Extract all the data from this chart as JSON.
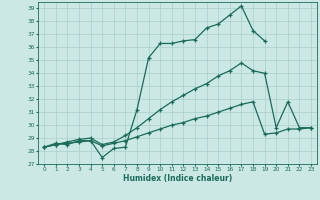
{
  "xlabel": "Humidex (Indice chaleur)",
  "bg_color": "#cce8e5",
  "grid_color": "#aacfcc",
  "line_color": "#1a6b5a",
  "xlim": [
    -0.5,
    23.5
  ],
  "ylim": [
    27,
    39.5
  ],
  "x_ticks": [
    0,
    1,
    2,
    3,
    4,
    5,
    6,
    7,
    8,
    9,
    10,
    11,
    12,
    13,
    14,
    15,
    16,
    17,
    18,
    19,
    20,
    21,
    22,
    23
  ],
  "yticks": [
    27,
    28,
    29,
    30,
    31,
    32,
    33,
    34,
    35,
    36,
    37,
    38,
    39
  ],
  "series1_x": [
    0,
    1,
    2,
    3,
    4,
    5,
    6,
    7,
    8,
    9,
    10,
    11,
    12,
    13,
    14,
    15,
    16,
    17,
    18,
    19
  ],
  "series1_y": [
    28.3,
    28.6,
    28.5,
    28.8,
    28.8,
    27.5,
    28.2,
    28.3,
    31.2,
    35.2,
    36.3,
    36.3,
    36.5,
    36.6,
    37.5,
    37.8,
    38.5,
    39.2,
    37.3,
    36.5
  ],
  "series2_x": [
    0,
    1,
    2,
    3,
    4,
    5,
    6,
    7,
    8,
    9,
    10,
    11,
    12,
    13,
    14,
    15,
    16,
    17,
    18,
    19,
    20,
    21,
    22,
    23
  ],
  "series2_y": [
    28.3,
    28.5,
    28.7,
    28.9,
    29.0,
    28.5,
    28.7,
    29.2,
    29.8,
    30.5,
    31.2,
    31.8,
    32.3,
    32.8,
    33.2,
    33.8,
    34.2,
    34.8,
    34.2,
    34.0,
    29.8,
    31.8,
    29.8,
    29.8
  ],
  "series3_x": [
    0,
    1,
    2,
    3,
    4,
    5,
    6,
    7,
    8,
    9,
    10,
    11,
    12,
    13,
    14,
    15,
    16,
    17,
    18,
    19,
    20,
    21,
    22,
    23
  ],
  "series3_y": [
    28.3,
    28.5,
    28.6,
    28.7,
    28.8,
    28.4,
    28.6,
    28.8,
    29.1,
    29.4,
    29.7,
    30.0,
    30.2,
    30.5,
    30.7,
    31.0,
    31.3,
    31.6,
    31.8,
    29.3,
    29.4,
    29.7,
    29.7,
    29.8
  ]
}
